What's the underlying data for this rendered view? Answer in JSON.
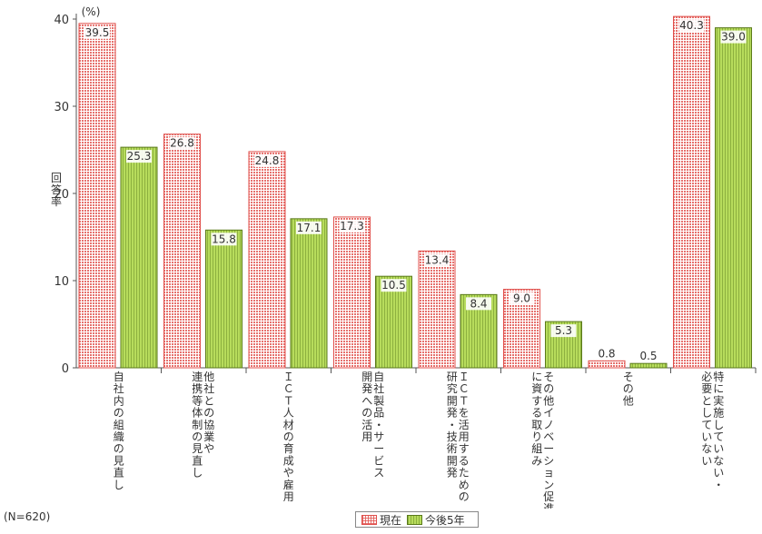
{
  "chart_data": {
    "type": "bar",
    "unit_label": "(%)",
    "ylabel": "回答率",
    "ylim": [
      0,
      40
    ],
    "yticks": [
      0,
      10,
      20,
      30,
      40
    ],
    "grid": false,
    "legend_position": "bottom",
    "note": "(N=620)",
    "categories": [
      "自社内の組織の見直し",
      "他社との協業や連携等体制の見直し",
      "ＩＣＴ人材の育成や雇用",
      "自社製品・サービス開発への活用",
      "ＩＣＴを活用するための研究開発・技術開発",
      "その他イノベーション促進に資する取り組み",
      "その他",
      "特に実施していない・必要としていない"
    ],
    "category_lines": [
      [
        "自社内の組織の見直し"
      ],
      [
        "他社との協業や",
        "連携等体制の見直し"
      ],
      [
        "ＩＣＴ人材の育成や雇用"
      ],
      [
        "自社製品・サービス",
        "開発への活用"
      ],
      [
        "ＩＣＴを活用するための",
        "研究開発・技術開発"
      ],
      [
        "その他イノベーション促進",
        "に資する取り組み"
      ],
      [
        "その他"
      ],
      [
        "特に実施していない・",
        "必要としていない"
      ]
    ],
    "series": [
      {
        "name": "現在",
        "values": [
          39.5,
          26.8,
          24.8,
          17.3,
          13.4,
          9.0,
          0.8,
          40.3
        ]
      },
      {
        "name": "今後5年",
        "values": [
          25.3,
          15.8,
          17.1,
          10.5,
          8.4,
          5.3,
          0.5,
          39.0
        ]
      }
    ]
  },
  "colors": {
    "current_border": "#e0504c",
    "current_dot": "#e25854",
    "future_fill": "#b7dc5c",
    "future_border": "#5a7a1a",
    "axis": "#555555"
  }
}
